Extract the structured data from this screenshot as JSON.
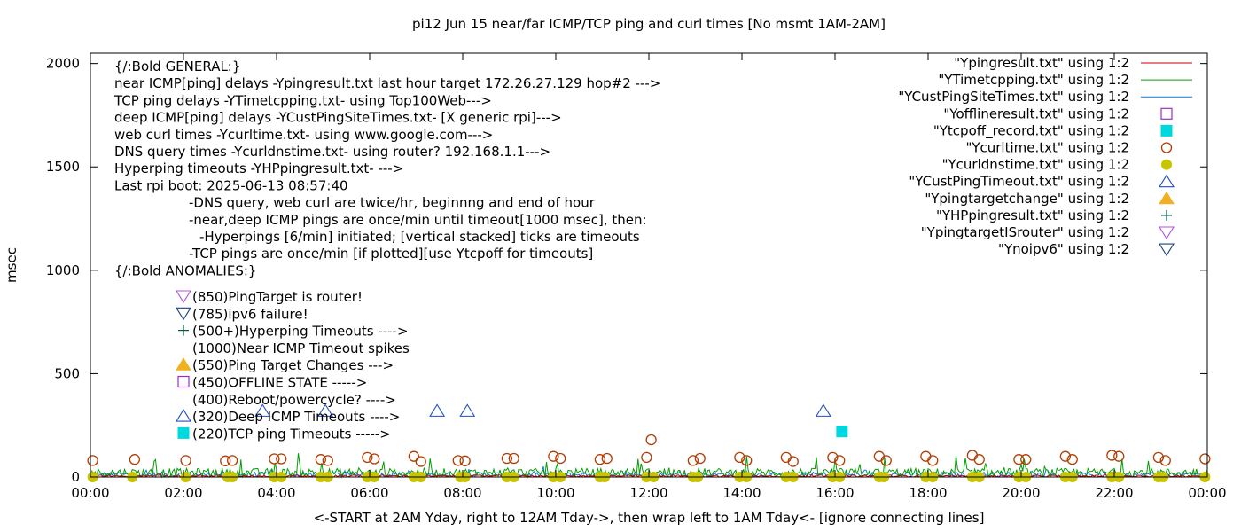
{
  "chart_data": {
    "type": "scatter",
    "title": "pi12 Jun 15  near/far ICMP/TCP ping and curl times [No msmt 1AM-2AM]",
    "xlabel": "<-START at 2AM Yday, right to 12AM Tday->, then wrap left to 1AM Tday<- [ignore connecting lines]",
    "ylabel": "msec",
    "xlim": [
      "00:00",
      "24:00"
    ],
    "ylim": [
      0,
      2050
    ],
    "x_ticks": [
      "00:00",
      "02:00",
      "04:00",
      "06:00",
      "08:00",
      "10:00",
      "12:00",
      "14:00",
      "16:00",
      "18:00",
      "20:00",
      "22:00",
      "00:00"
    ],
    "y_ticks": [
      "0",
      "500",
      "1000",
      "1500",
      "2000"
    ],
    "grid": false,
    "legend_position": "top-right",
    "legend": [
      {
        "label": "\"Ypingresult.txt\" using 1:2",
        "style": "line",
        "color": "#cc0000"
      },
      {
        "label": "\"YTimetcpping.txt\" using 1:2",
        "style": "line",
        "color": "#009e00"
      },
      {
        "label": "\"YCustPingSiteTimes.txt\" using 1:2",
        "style": "line",
        "color": "#0e7ad8"
      },
      {
        "label": "\"Yofflineresult.txt\" using 1:2",
        "style": "open-square",
        "color": "#9b2dc7"
      },
      {
        "label": "\"Ytcpoff_record.txt\" using 1:2",
        "style": "filled-square",
        "color": "#00d8e0"
      },
      {
        "label": "\"Ycurltime.txt\" using 1:2",
        "style": "open-circle",
        "color": "#b23c00"
      },
      {
        "label": "\"Ycurldnstime.txt\" using 1:2",
        "style": "filled-circle",
        "color": "#c9c400"
      },
      {
        "label": "\"YCustPingTimeout.txt\" using 1:2",
        "style": "open-triangle-up",
        "color": "#2050c8"
      },
      {
        "label": "\"Ypingtargetchange\" using 1:2",
        "style": "filled-triangle-up",
        "color": "#f0b020"
      },
      {
        "label": "\"YHPpingresult.txt\" using 1:2",
        "style": "plus",
        "color": "#005a40"
      },
      {
        "label": "\"YpingtargetISrouter\" using 1:2",
        "style": "open-triangle-down",
        "color": "#b050e0"
      },
      {
        "label": "\"Ynoipv6\" using 1:2",
        "style": "open-triangle-down",
        "color": "#1a4480"
      }
    ],
    "annotation_lines": [
      "{/:Bold GENERAL:}",
      "near ICMP[ping] delays -Ypingresult.txt last hour target 172.26.27.129 hop#2 --->",
      "TCP ping delays -YTimetcpping.txt- using Top100Web--->",
      "deep ICMP[ping] delays -YCustPingSiteTimes.txt- [X generic rpi]--->",
      "web curl times -Ycurltime.txt- using www.google.com--->",
      "DNS query times -Ycurldnstime.txt- using router? 192.168.1.1--->",
      "Hyperping timeouts -YHPpingresult.txt- --->",
      "Last rpi boot: 2025-06-13 08:57:40",
      "-DNS query, web curl are twice/hr, beginnng and end of hour",
      "-near,deep ICMP pings are once/min until timeout[1000 msec], then:",
      "-Hyperpings [6/min] initiated; [vertical stacked] ticks are timeouts",
      "-TCP pings are once/min [if plotted][use Ytcpoff for timeouts]",
      "{/:Bold ANOMALIES:}"
    ],
    "anomaly_keys": [
      {
        "label": "(850)PingTarget is router!",
        "symbol": "open-triangle-down",
        "color": "#b050e0"
      },
      {
        "label": "(785)ipv6 failure!",
        "symbol": "open-triangle-down",
        "color": "#1a4480"
      },
      {
        "label": "(500+)Hyperping Timeouts ---->",
        "symbol": "plus",
        "color": "#005a40"
      },
      {
        "label": "(1000)Near ICMP Timeout spikes",
        "symbol": "none",
        "color": "#cc0000"
      },
      {
        "label": "(550)Ping Target Changes --->",
        "symbol": "filled-triangle-up",
        "color": "#f0b020"
      },
      {
        "label": "(450)OFFLINE STATE ----->",
        "symbol": "open-square",
        "color": "#9b2dc7"
      },
      {
        "label": "(400)Reboot/powercycle? ---->",
        "symbol": "none",
        "color": "#000000"
      },
      {
        "label": "(320)Deep ICMP Timeouts ---->",
        "symbol": "open-triangle-up",
        "color": "#2050c8"
      },
      {
        "label": "(220)TCP ping Timeouts ----->",
        "symbol": "filled-square",
        "color": "#00d8e0"
      }
    ],
    "series_points": {
      "curl_times": [
        [
          0.05,
          80
        ],
        [
          0.95,
          85
        ],
        [
          2.05,
          80
        ],
        [
          2.9,
          78
        ],
        [
          3.05,
          80
        ],
        [
          3.95,
          88
        ],
        [
          4.1,
          88
        ],
        [
          4.95,
          85
        ],
        [
          5.1,
          80
        ],
        [
          5.95,
          95
        ],
        [
          6.1,
          88
        ],
        [
          6.95,
          100
        ],
        [
          7.1,
          75
        ],
        [
          7.9,
          80
        ],
        [
          8.05,
          78
        ],
        [
          8.95,
          90
        ],
        [
          9.1,
          90
        ],
        [
          9.95,
          100
        ],
        [
          10.1,
          90
        ],
        [
          10.95,
          85
        ],
        [
          11.1,
          90
        ],
        [
          11.95,
          95
        ],
        [
          12.05,
          180
        ],
        [
          12.95,
          80
        ],
        [
          13.1,
          90
        ],
        [
          13.95,
          95
        ],
        [
          14.1,
          80
        ],
        [
          14.95,
          95
        ],
        [
          15.1,
          75
        ],
        [
          15.95,
          95
        ],
        [
          16.1,
          80
        ],
        [
          16.95,
          100
        ],
        [
          17.1,
          80
        ],
        [
          17.95,
          100
        ],
        [
          18.1,
          80
        ],
        [
          18.95,
          105
        ],
        [
          19.1,
          85
        ],
        [
          19.95,
          85
        ],
        [
          20.1,
          85
        ],
        [
          20.95,
          100
        ],
        [
          21.1,
          85
        ],
        [
          21.95,
          105
        ],
        [
          22.1,
          100
        ],
        [
          22.95,
          95
        ],
        [
          23.1,
          80
        ],
        [
          23.95,
          88
        ]
      ],
      "dns_times": [
        [
          0.05,
          0
        ],
        [
          0.9,
          0
        ],
        [
          2.05,
          0
        ],
        [
          2.95,
          0
        ],
        [
          3.05,
          0
        ],
        [
          3.95,
          0
        ],
        [
          4.1,
          0
        ],
        [
          4.95,
          0
        ],
        [
          5.1,
          0
        ],
        [
          5.95,
          0
        ],
        [
          6.1,
          0
        ],
        [
          6.95,
          0
        ],
        [
          7.1,
          0
        ],
        [
          7.95,
          0
        ],
        [
          8.05,
          0
        ],
        [
          8.95,
          0
        ],
        [
          9.1,
          0
        ],
        [
          9.95,
          0
        ],
        [
          10.1,
          0
        ],
        [
          10.95,
          0
        ],
        [
          11.05,
          0
        ],
        [
          11.95,
          0
        ],
        [
          12.1,
          0
        ],
        [
          12.95,
          0
        ],
        [
          13.05,
          0
        ],
        [
          13.95,
          0
        ],
        [
          14.1,
          0
        ],
        [
          14.95,
          0
        ],
        [
          15.1,
          0
        ],
        [
          15.95,
          0
        ],
        [
          16.1,
          0
        ],
        [
          16.95,
          0
        ],
        [
          17.05,
          0
        ],
        [
          17.95,
          0
        ],
        [
          18.1,
          0
        ],
        [
          18.95,
          0
        ],
        [
          19.1,
          0
        ],
        [
          19.95,
          0
        ],
        [
          20.1,
          0
        ],
        [
          20.95,
          0
        ],
        [
          21.1,
          0
        ],
        [
          21.95,
          0
        ],
        [
          22.1,
          0
        ],
        [
          22.95,
          0
        ],
        [
          23.05,
          0
        ],
        [
          23.95,
          0
        ]
      ],
      "deep_icmp_timeouts": [
        [
          3.7,
          320
        ],
        [
          5.05,
          320
        ],
        [
          7.45,
          320
        ],
        [
          8.1,
          320
        ],
        [
          15.75,
          320
        ]
      ],
      "tcp_ping_timeouts": [
        [
          16.15,
          220
        ]
      ],
      "tcp_ping_delays_baseline": [
        0,
        120
      ],
      "near_icmp_baseline": [
        0,
        20
      ],
      "deep_icmp_baseline": [
        0,
        40
      ]
    }
  }
}
